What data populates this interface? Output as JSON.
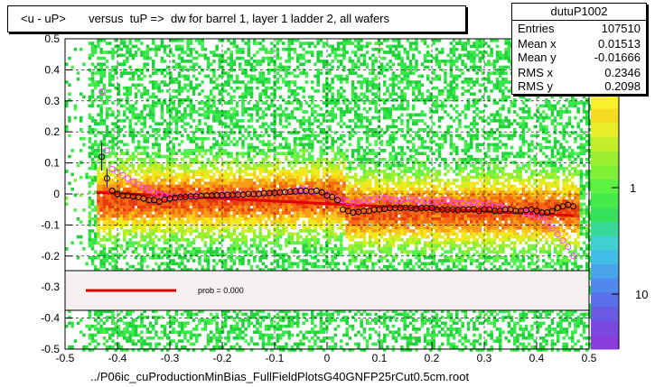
{
  "title": "<u - uP>       versus  tuP =>  dw for barrel 1, layer 1 ladder 2, all wafers",
  "x_axis_title": "../P06ic_cuProductionMinBias_FullFieldPlotsG40GNFP25rCut0.5cm.root",
  "stats": {
    "name": "dutuP1002",
    "rows": [
      {
        "label": "Entries",
        "value": "107510"
      },
      {
        "label": "Mean x",
        "value": "0.01513"
      },
      {
        "label": "Mean y",
        "value": "-0.01666"
      },
      {
        "label": "RMS x",
        "value": "0.2346"
      },
      {
        "label": "RMS y",
        "value": "0.2098"
      }
    ]
  },
  "legend": {
    "fit_label": "prob = 0.000",
    "fit_color": "#e00000"
  },
  "colorbar": {
    "tick_labels": [
      "1",
      "10"
    ]
  },
  "chart_data": {
    "type": "heatmap",
    "xlim": [
      -0.5,
      0.5
    ],
    "ylim": [
      -0.5,
      0.5
    ],
    "x_ticks": [
      "-0.5",
      "-0.4",
      "-0.3",
      "-0.2",
      "-0.1",
      "0",
      "0.1",
      "0.2",
      "0.3",
      "0.4",
      "0.5"
    ],
    "y_ticks": [
      "-0.5",
      "-0.4",
      "-0.3",
      "-0.2",
      "-0.1",
      "0",
      "0.1",
      "0.2",
      "0.3",
      "0.4",
      "0.5"
    ],
    "grid": true,
    "profile_black": {
      "x": [
        -0.43,
        -0.42,
        -0.41,
        -0.4,
        -0.39,
        -0.38,
        -0.37,
        -0.36,
        -0.35,
        -0.34,
        -0.33,
        -0.32,
        -0.31,
        -0.3,
        -0.29,
        -0.28,
        -0.27,
        -0.26,
        -0.25,
        -0.24,
        -0.23,
        -0.22,
        -0.21,
        -0.2,
        -0.19,
        -0.18,
        -0.17,
        -0.16,
        -0.15,
        -0.14,
        -0.13,
        -0.12,
        -0.11,
        -0.1,
        -0.09,
        -0.08,
        -0.07,
        -0.06,
        -0.05,
        -0.04,
        -0.03,
        -0.02,
        -0.01,
        0.0,
        0.01,
        0.02,
        0.03,
        0.04,
        0.05,
        0.06,
        0.07,
        0.08,
        0.09,
        0.1,
        0.11,
        0.12,
        0.13,
        0.14,
        0.15,
        0.16,
        0.17,
        0.18,
        0.19,
        0.2,
        0.21,
        0.22,
        0.23,
        0.24,
        0.25,
        0.26,
        0.27,
        0.28,
        0.29,
        0.3,
        0.31,
        0.32,
        0.33,
        0.34,
        0.35,
        0.36,
        0.37,
        0.38,
        0.39,
        0.4,
        0.41,
        0.42,
        0.43,
        0.44,
        0.45,
        0.46,
        0.47
      ],
      "y": [
        0.12,
        0.05,
        0.01,
        0.0,
        -0.005,
        -0.005,
        -0.008,
        -0.01,
        -0.015,
        -0.02,
        -0.02,
        -0.025,
        -0.018,
        -0.015,
        -0.012,
        -0.01,
        -0.01,
        -0.008,
        -0.008,
        -0.006,
        -0.005,
        -0.005,
        -0.004,
        -0.004,
        -0.003,
        -0.003,
        -0.002,
        -0.002,
        0.0,
        0.0,
        0.0,
        0.002,
        0.003,
        0.004,
        0.005,
        0.006,
        0.007,
        0.008,
        0.01,
        0.01,
        0.008,
        0.01,
        0.005,
        -0.005,
        -0.01,
        -0.02,
        -0.05,
        -0.055,
        -0.06,
        -0.058,
        -0.055,
        -0.055,
        -0.05,
        -0.05,
        -0.048,
        -0.045,
        -0.045,
        -0.045,
        -0.044,
        -0.045,
        -0.048,
        -0.045,
        -0.045,
        -0.045,
        -0.05,
        -0.05,
        -0.05,
        -0.05,
        -0.052,
        -0.05,
        -0.05,
        -0.05,
        -0.055,
        -0.05,
        -0.05,
        -0.055,
        -0.055,
        -0.05,
        -0.05,
        -0.055,
        -0.055,
        -0.052,
        -0.05,
        -0.055,
        -0.06,
        -0.06,
        -0.055,
        -0.045,
        -0.04,
        -0.035,
        -0.04
      ]
    },
    "profile_magenta": {
      "x": [
        -0.43,
        -0.42,
        -0.41,
        -0.4,
        -0.39,
        -0.38,
        -0.37,
        -0.36,
        -0.35,
        -0.34,
        -0.33,
        -0.32,
        -0.31,
        -0.3,
        -0.29,
        -0.28,
        -0.27,
        -0.26,
        -0.25,
        -0.24,
        -0.23,
        -0.22,
        -0.21,
        -0.2,
        -0.19,
        -0.18,
        -0.17,
        -0.16,
        -0.15,
        -0.14,
        -0.13,
        -0.12,
        -0.11,
        -0.1,
        -0.09,
        -0.08,
        -0.07,
        -0.06,
        -0.05,
        -0.04,
        -0.03,
        -0.02,
        -0.01,
        0.0,
        0.01,
        0.02,
        0.03,
        0.04,
        0.05,
        0.06,
        0.07,
        0.08,
        0.09,
        0.1,
        0.11,
        0.12,
        0.13,
        0.14,
        0.15,
        0.16,
        0.17,
        0.18,
        0.19,
        0.2,
        0.21,
        0.22,
        0.23,
        0.24,
        0.25,
        0.26,
        0.27,
        0.28,
        0.29,
        0.3,
        0.31,
        0.32,
        0.33,
        0.34,
        0.35,
        0.36,
        0.37,
        0.38,
        0.39,
        0.4,
        0.41,
        0.42,
        0.43,
        0.44,
        0.45,
        0.46,
        0.47
      ],
      "y": [
        0.33,
        0.14,
        0.08,
        0.07,
        0.06,
        0.05,
        0.04,
        0.03,
        0.02,
        0.015,
        0.005,
        0.0,
        -0.005,
        -0.01,
        -0.01,
        -0.008,
        -0.01,
        -0.005,
        -0.005,
        -0.005,
        -0.005,
        -0.005,
        -0.004,
        0.0,
        0.0,
        -0.002,
        0.0,
        0.0,
        0.0,
        0.0,
        0.002,
        0.003,
        0.004,
        0.005,
        0.006,
        0.007,
        0.008,
        0.01,
        0.015,
        0.015,
        0.01,
        0.008,
        0.005,
        0.0,
        -0.01,
        -0.015,
        -0.02,
        -0.025,
        -0.03,
        -0.025,
        -0.02,
        -0.02,
        -0.015,
        -0.01,
        -0.012,
        -0.015,
        -0.02,
        -0.02,
        -0.015,
        -0.015,
        -0.02,
        -0.025,
        -0.02,
        -0.025,
        -0.025,
        -0.02,
        -0.02,
        -0.025,
        -0.03,
        -0.03,
        -0.035,
        -0.025,
        -0.03,
        -0.035,
        -0.03,
        -0.04,
        -0.04,
        -0.045,
        -0.05,
        -0.055,
        -0.055,
        -0.06,
        -0.065,
        -0.07,
        -0.075,
        -0.09,
        -0.11,
        -0.13,
        -0.15,
        -0.17,
        -0.2
      ]
    },
    "fit_line": {
      "x": [
        -0.44,
        0.47
      ],
      "y": [
        0.005,
        -0.07
      ]
    }
  }
}
